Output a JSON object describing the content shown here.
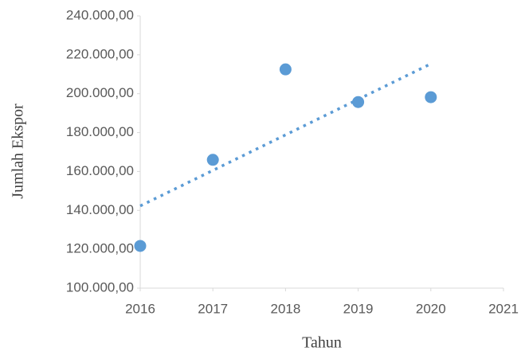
{
  "chart_data": {
    "type": "scatter",
    "x_label": "Tahun",
    "y_label": "Jumlah Ekspor",
    "series": [
      {
        "name": "Jumlah Ekspor",
        "color": "#5b9bd5",
        "x": [
          2016,
          2017,
          2018,
          2019,
          2020
        ],
        "values": [
          121700,
          166000,
          212500,
          195700,
          198200
        ]
      }
    ],
    "trendline": "linear",
    "xlim": [
      2016,
      2021
    ],
    "xticks": [
      2016,
      2017,
      2018,
      2019,
      2020,
      2021
    ],
    "ylim": [
      100000,
      240000
    ],
    "yticks": [
      {
        "value": 100000,
        "label": "100.000,00"
      },
      {
        "value": 120000,
        "label": "120.000,00"
      },
      {
        "value": 140000,
        "label": "140.000,00"
      },
      {
        "value": 160000,
        "label": "160.000,00"
      },
      {
        "value": 180000,
        "label": "180.000,00"
      },
      {
        "value": 200000,
        "label": "200.000,00"
      },
      {
        "value": 220000,
        "label": "220.000,00"
      },
      {
        "value": 240000,
        "label": "240.000,00"
      }
    ],
    "grid": false
  }
}
